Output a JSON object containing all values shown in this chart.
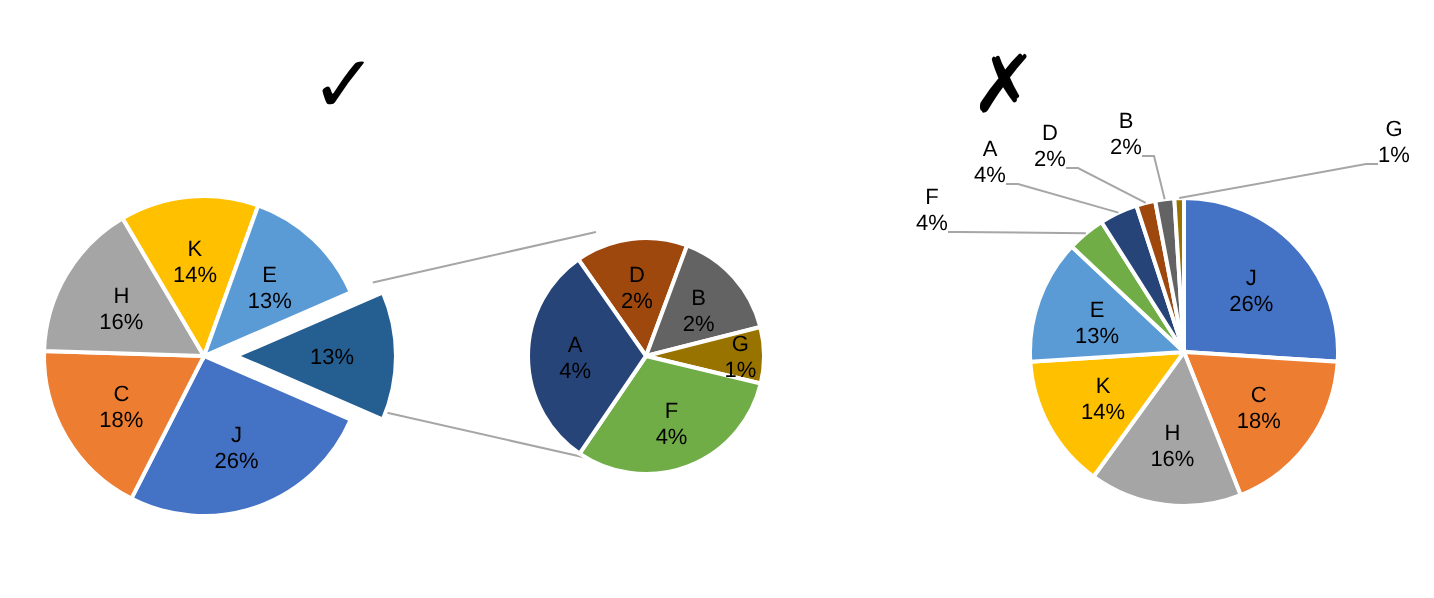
{
  "chart_data": [
    {
      "type": "pie",
      "title": "✓",
      "categories": [
        "J",
        "C",
        "H",
        "K",
        "E",
        null
      ],
      "values": [
        26,
        18,
        16,
        14,
        13,
        13
      ],
      "colors": [
        "#4472c4",
        "#ed7d31",
        "#a5a5a5",
        "#ffc000",
        "#5b9bd5",
        "#255e91"
      ],
      "value_labels": [
        "26%",
        "18%",
        "16%",
        "14%",
        "13%",
        "13%"
      ],
      "legend": false
    },
    {
      "type": "pie",
      "categories": [
        "D",
        "B",
        "G",
        "F",
        "A"
      ],
      "values": [
        2,
        2,
        1,
        4,
        4
      ],
      "colors": [
        "#9e480e",
        "#636363",
        "#997300",
        "#70ad47",
        "#264478"
      ],
      "value_labels": [
        "2%",
        "2%",
        "1%",
        "4%",
        "4%"
      ],
      "legend": false
    },
    {
      "type": "pie",
      "title": "✗",
      "categories": [
        "J",
        "C",
        "H",
        "K",
        "E",
        "F",
        "A",
        "D",
        "B",
        "G"
      ],
      "values": [
        26,
        18,
        16,
        14,
        13,
        4,
        4,
        2,
        2,
        1
      ],
      "colors": [
        "#4472c4",
        "#ed7d31",
        "#a5a5a5",
        "#ffc000",
        "#5b9bd5",
        "#70ad47",
        "#264478",
        "#9e480e",
        "#636363",
        "#997300"
      ],
      "value_labels": [
        "26%",
        "18%",
        "16%",
        "14%",
        "13%",
        "4%",
        "4%",
        "2%",
        "2%",
        "1%"
      ],
      "legend": false
    }
  ]
}
